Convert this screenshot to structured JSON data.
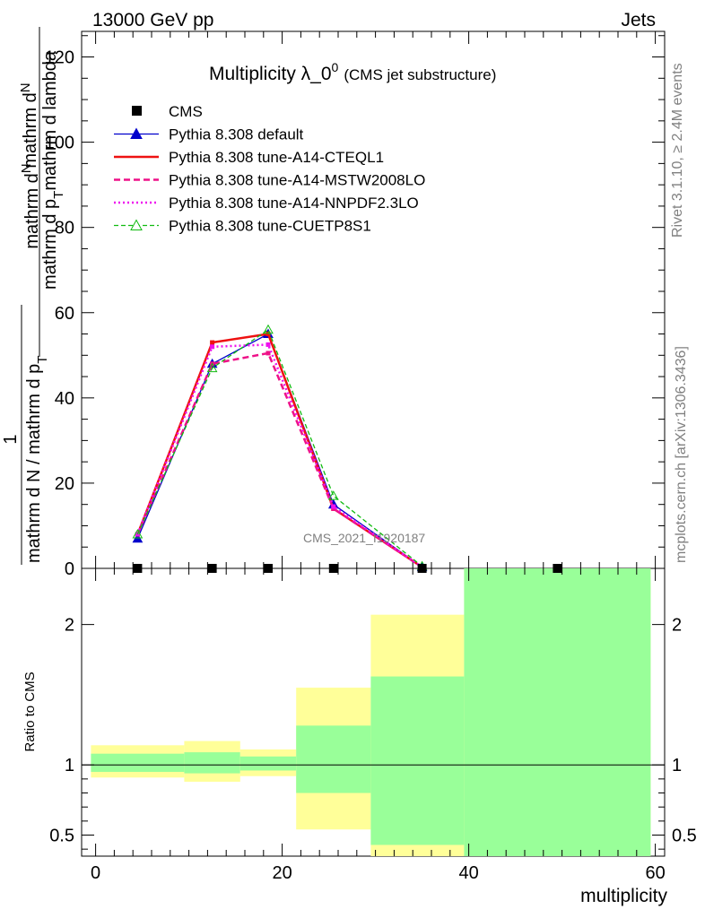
{
  "header": {
    "left": "13000 GeV pp",
    "right": "Jets"
  },
  "title": {
    "main": "Multiplicity λ_0",
    "superscript": "0",
    "sub": "(CMS jet substructure)"
  },
  "ylabel": {
    "numerator_top": "mathrm d",
    "numerator_n": "N",
    "denominator": "mathrm d p",
    "denominator_t": "T",
    "denominator_tail": "mathrm d lambda",
    "prefactor_one": "1",
    "prefactor_denominator": "mathrm d N / mathrm d p",
    "prefactor_t": "T"
  },
  "ratio_ylabel": "Ratio to CMS",
  "xlabel": "multiplicity",
  "watermark": "CMS_2021_I1920187",
  "side_text": {
    "rivet": "Rivet 3.1.10, ≥ 2.4M events",
    "site": "mcplots.cern.ch [arXiv:1306.3436]"
  },
  "legend": [
    {
      "label": "CMS",
      "color": "#000000",
      "style": "square"
    },
    {
      "label": "Pythia 8.308 default",
      "color": "#0000cc",
      "style": "solid-triangle"
    },
    {
      "label": "Pythia 8.308 tune-A14-CTEQL1",
      "color": "#ee1111",
      "style": "thick"
    },
    {
      "label": "Pythia 8.308 tune-A14-MSTW2008LO",
      "color": "#ee1188",
      "style": "dashed"
    },
    {
      "label": "Pythia 8.308 tune-A14-NNPDF2.3LO",
      "color": "#ee11ee",
      "style": "dotted"
    },
    {
      "label": "Pythia 8.308 tune-CUETP8S1",
      "color": "#11bb11",
      "style": "dashed-triangle"
    }
  ],
  "chart_data": {
    "type": "line",
    "main": {
      "xlim": [
        -1.5,
        61
      ],
      "ylim": [
        0,
        126
      ],
      "yticks": [
        0,
        20,
        40,
        60,
        80,
        100,
        120
      ],
      "data_points_x": [
        4.5,
        12.5,
        18.5,
        25.5,
        35,
        49.5
      ],
      "data_points_y": [
        0,
        0,
        0,
        0,
        0,
        0
      ],
      "series": [
        {
          "name": "Pythia 8.308 default",
          "x": [
            4.5,
            12.5,
            18.5,
            25.5,
            35
          ],
          "y": [
            7,
            48,
            55,
            15,
            0.3
          ]
        },
        {
          "name": "Pythia 8.308 tune-A14-CTEQL1",
          "x": [
            4.5,
            12.5,
            18.5,
            25.5,
            35
          ],
          "y": [
            8,
            53,
            55,
            14,
            0.3
          ]
        },
        {
          "name": "Pythia 8.308 tune-A14-MSTW2008LO",
          "x": [
            4.5,
            12.5,
            18.5,
            25.5,
            35
          ],
          "y": [
            8,
            48,
            50.5,
            14,
            0.3
          ]
        },
        {
          "name": "Pythia 8.308 tune-A14-NNPDF2.3LO",
          "x": [
            4.5,
            12.5,
            18.5,
            25.5,
            35
          ],
          "y": [
            8,
            52,
            52.5,
            14.5,
            0.3
          ]
        },
        {
          "name": "Pythia 8.308 tune-CUETP8S1",
          "x": [
            4.5,
            12.5,
            18.5,
            25.5,
            35
          ],
          "y": [
            8,
            47,
            56,
            17,
            0.5
          ]
        }
      ]
    },
    "ratio": {
      "ylim": [
        0.35,
        2.4
      ],
      "yticks": [
        0.5,
        1,
        2
      ],
      "ytick_labels": [
        "0.5",
        "1",
        "2"
      ],
      "xticks": [
        0,
        20,
        40,
        60
      ],
      "xtick_labels": [
        "0",
        "20",
        "40",
        "60"
      ],
      "reference": 1,
      "bins": [
        {
          "lo": -0.5,
          "hi": 9.5,
          "band2": [
            0.91,
            1.14
          ],
          "band1": [
            0.95,
            1.08
          ]
        },
        {
          "lo": 9.5,
          "hi": 15.5,
          "band2": [
            0.88,
            1.17
          ],
          "band1": [
            0.94,
            1.09
          ]
        },
        {
          "lo": 15.5,
          "hi": 21.5,
          "band2": [
            0.92,
            1.11
          ],
          "band1": [
            0.96,
            1.06
          ]
        },
        {
          "lo": 21.5,
          "hi": 29.5,
          "band2": [
            0.54,
            1.55
          ],
          "band1": [
            0.8,
            1.28
          ]
        },
        {
          "lo": 29.5,
          "hi": 39.5,
          "band2": [
            0.3,
            2.07
          ],
          "band1": [
            0.43,
            1.63
          ]
        },
        {
          "lo": 39.5,
          "hi": 59.5,
          "band2": [
            0.3,
            2.6
          ],
          "band1": [
            0.3,
            2.6
          ]
        }
      ]
    }
  },
  "colors": {
    "band_inner": "#99ff99",
    "band_outer": "#ffff99"
  }
}
